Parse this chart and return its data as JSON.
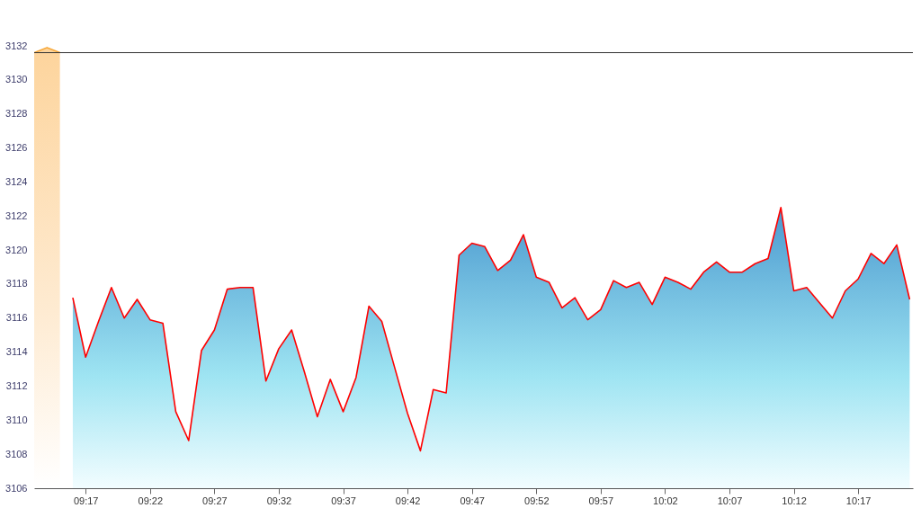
{
  "chart_data": {
    "type": "area",
    "series": [
      {
        "color": "#ff0000",
        "x": [
          9.2667,
          9.2833,
          9.3,
          9.3167,
          9.3333,
          9.35,
          9.3667,
          9.3833,
          9.4,
          9.4167,
          9.4333,
          9.45,
          9.4667,
          9.4833,
          9.5,
          9.5167,
          9.5333,
          9.55,
          9.5667,
          9.5833,
          9.6,
          9.6167,
          9.6333,
          9.65,
          9.6667,
          9.6833,
          9.7,
          9.7167,
          9.7333,
          9.75,
          9.7667,
          9.7833,
          9.8,
          9.8167,
          9.8333,
          9.85,
          9.8667,
          9.8833,
          9.9,
          9.9167,
          9.9333,
          9.95,
          9.9667,
          9.9833,
          10.0,
          10.0167,
          10.0333,
          10.05,
          10.0667,
          10.0833,
          10.1,
          10.1167,
          10.1333,
          10.15,
          10.1667,
          10.1833,
          10.2,
          10.2167,
          10.2333,
          10.25,
          10.2667,
          10.2833,
          10.3,
          10.3167,
          10.3333,
          10.35
        ],
        "values": [
          3117.2,
          3113.7,
          3115.8,
          3117.8,
          3116.0,
          3117.1,
          3115.9,
          3115.7,
          3110.5,
          3108.8,
          3114.1,
          3115.3,
          3117.7,
          3117.8,
          3117.8,
          3112.3,
          3114.2,
          3115.3,
          3112.8,
          3110.2,
          3112.4,
          3110.5,
          3112.5,
          3116.7,
          3115.8,
          3113.1,
          3110.4,
          3108.2,
          3111.8,
          3111.6,
          3119.7,
          3120.4,
          3120.2,
          3118.8,
          3119.4,
          3120.9,
          3118.4,
          3118.1,
          3116.6,
          3117.2,
          3115.9,
          3116.5,
          3118.2,
          3117.8,
          3118.1,
          3116.8,
          3118.4,
          3118.1,
          3117.7,
          3118.7,
          3119.3,
          3118.7,
          3118.7,
          3119.2,
          3119.5,
          3122.5,
          3117.6,
          3117.8,
          3116.9,
          3116.0,
          3117.6,
          3118.3,
          3119.8,
          3119.2,
          3120.3,
          3117.1
        ]
      },
      {
        "color": "#f7a93b",
        "x": [
          9.2167,
          9.2333,
          9.25
        ],
        "values": [
          3131.6,
          3131.9,
          3131.6
        ]
      }
    ],
    "xlim": [
      9.2167,
      10.3542
    ],
    "xticks": [
      {
        "value": 9.2833,
        "label": "09:17"
      },
      {
        "value": 9.3667,
        "label": "09:22"
      },
      {
        "value": 9.45,
        "label": "09:27"
      },
      {
        "value": 9.5333,
        "label": "09:32"
      },
      {
        "value": 9.6167,
        "label": "09:37"
      },
      {
        "value": 9.7,
        "label": "09:42"
      },
      {
        "value": 9.7833,
        "label": "09:47"
      },
      {
        "value": 9.8667,
        "label": "09:52"
      },
      {
        "value": 9.95,
        "label": "09:57"
      },
      {
        "value": 10.0333,
        "label": "10:02"
      },
      {
        "value": 10.1167,
        "label": "10:07"
      },
      {
        "value": 10.2,
        "label": "10:12"
      },
      {
        "value": 10.2833,
        "label": "10:17"
      }
    ],
    "ylim": [
      3106,
      3132
    ],
    "yticks": [
      3106,
      3108,
      3110,
      3112,
      3114,
      3116,
      3118,
      3120,
      3122,
      3124,
      3126,
      3128,
      3130,
      3132
    ],
    "ref_lines": [
      {
        "axis": "y",
        "value": 3131.6,
        "color": "#333333"
      }
    ],
    "grid": false,
    "marker": "none",
    "line_style": "solid"
  }
}
